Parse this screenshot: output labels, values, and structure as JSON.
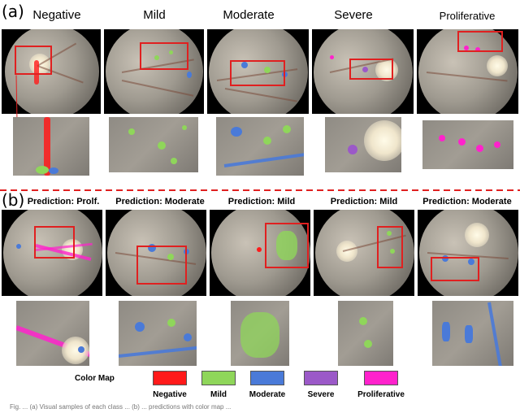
{
  "panel_a": {
    "label": "(a)",
    "columns": [
      "Negative",
      "Mild",
      "Moderate",
      "Severe",
      "Proliferative"
    ]
  },
  "panel_b": {
    "label": "(b)",
    "predictions": [
      "Prediction: Prolf.",
      "Prediction: Moderate",
      "Prediction: Mild",
      "Prediction: Mild",
      "Prediction: Moderate"
    ]
  },
  "legend": {
    "title": "Color Map",
    "items": [
      {
        "label": "Negative",
        "color": "#ff1a1a"
      },
      {
        "label": "Mild",
        "color": "#8fd65a"
      },
      {
        "label": "Moderate",
        "color": "#4a7ad8"
      },
      {
        "label": "Severe",
        "color": "#9b59c8"
      },
      {
        "label": "Proliferative",
        "color": "#ff22cc"
      }
    ]
  },
  "colors": {
    "roi_box": "#e02020",
    "divider": "#e02020"
  },
  "caption": "Fig. ... (a) Visual samples of each class ... (b) ... predictions with color map ..."
}
